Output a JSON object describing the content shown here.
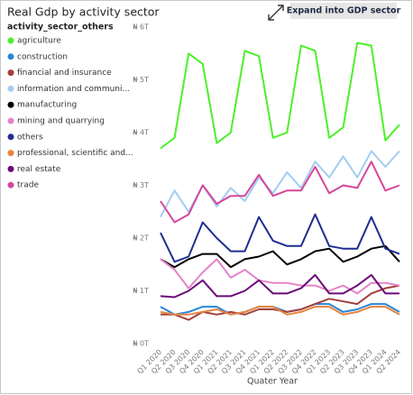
{
  "chart_data": {
    "type": "line",
    "title": "Real Gdp by activity sector",
    "button": "Expand into GDP sector",
    "legend_title": "activity_sector_others",
    "x_label": "Quater Year",
    "categories": [
      "Q1 2020",
      "Q2 2020",
      "Q3 2020",
      "Q4 2020",
      "Q1 2021",
      "Q2 2021",
      "Q3 2021",
      "Q4 2021",
      "Q1 2022",
      "Q2 2022",
      "Q3 2022",
      "Q4 2022",
      "Q1 2023",
      "Q2 2023",
      "Q3 2023",
      "Q4 2023",
      "Q1 2024",
      "Q2 2024"
    ],
    "ylim": [
      0,
      6
    ],
    "yticks": [
      {
        "value": 0,
        "label": "₦ 0T"
      },
      {
        "value": 1,
        "label": "₦ 1T"
      },
      {
        "value": 2,
        "label": "₦ 2T"
      },
      {
        "value": 3,
        "label": "₦ 3T"
      },
      {
        "value": 4,
        "label": "₦ 4T"
      },
      {
        "value": 5,
        "label": "₦ 5T"
      },
      {
        "value": 6,
        "label": "₦ 6T"
      }
    ],
    "grid": false,
    "series": [
      {
        "name": "agriculture",
        "color": "#4cf02a",
        "values": [
          3.7,
          3.9,
          5.5,
          5.3,
          3.8,
          4.0,
          5.55,
          5.45,
          3.9,
          4.0,
          5.65,
          5.55,
          3.9,
          4.1,
          5.7,
          5.65,
          3.85,
          4.15
        ]
      },
      {
        "name": "construction",
        "color": "#2a86d8",
        "values": [
          0.7,
          0.55,
          0.6,
          0.7,
          0.7,
          0.55,
          0.6,
          0.7,
          0.7,
          0.6,
          0.65,
          0.75,
          0.75,
          0.6,
          0.65,
          0.75,
          0.75,
          0.6
        ]
      },
      {
        "name": "financial and insurance",
        "color": "#a3403e",
        "values": [
          0.55,
          0.55,
          0.45,
          0.6,
          0.55,
          0.6,
          0.55,
          0.65,
          0.65,
          0.6,
          0.65,
          0.75,
          0.85,
          0.8,
          0.75,
          0.95,
          1.05,
          1.1
        ]
      },
      {
        "name": "information and communi...",
        "color": "#a3cdf2",
        "values": [
          2.4,
          2.9,
          2.5,
          3.0,
          2.6,
          2.95,
          2.7,
          3.15,
          2.85,
          3.25,
          2.95,
          3.45,
          3.15,
          3.55,
          3.15,
          3.65,
          3.35,
          3.65
        ]
      },
      {
        "name": "manufacturing",
        "color": "#000000",
        "values": [
          1.6,
          1.45,
          1.6,
          1.7,
          1.7,
          1.45,
          1.6,
          1.65,
          1.75,
          1.5,
          1.6,
          1.75,
          1.8,
          1.55,
          1.65,
          1.8,
          1.85,
          1.55
        ]
      },
      {
        "name": "mining and quarrying",
        "color": "#e583c8",
        "values": [
          1.6,
          1.4,
          1.05,
          1.35,
          1.6,
          1.25,
          1.4,
          1.2,
          1.15,
          1.15,
          1.1,
          1.1,
          1.0,
          1.1,
          0.95,
          1.15,
          1.15,
          1.1
        ]
      },
      {
        "name": "others",
        "color": "#1f2e8f",
        "values": [
          2.1,
          1.55,
          1.65,
          2.3,
          2.0,
          1.75,
          1.75,
          2.4,
          1.95,
          1.85,
          1.85,
          2.45,
          1.85,
          1.8,
          1.8,
          2.4,
          1.8,
          1.7
        ]
      },
      {
        "name": "professional, scientific and...",
        "color": "#e8843e",
        "values": [
          0.6,
          0.55,
          0.55,
          0.6,
          0.65,
          0.55,
          0.6,
          0.7,
          0.7,
          0.55,
          0.6,
          0.7,
          0.7,
          0.55,
          0.6,
          0.7,
          0.7,
          0.55
        ]
      },
      {
        "name": "real estate",
        "color": "#6b0a78",
        "values": [
          0.9,
          0.88,
          1.0,
          1.2,
          0.9,
          0.9,
          1.0,
          1.2,
          0.95,
          0.95,
          1.05,
          1.3,
          0.95,
          0.95,
          1.1,
          1.3,
          0.95,
          0.95
        ]
      },
      {
        "name": "trade",
        "color": "#d6479a",
        "values": [
          2.7,
          2.3,
          2.45,
          3.0,
          2.65,
          2.8,
          2.8,
          3.2,
          2.8,
          2.9,
          2.9,
          3.35,
          2.85,
          3.0,
          2.95,
          3.45,
          2.9,
          3.0
        ]
      }
    ]
  }
}
